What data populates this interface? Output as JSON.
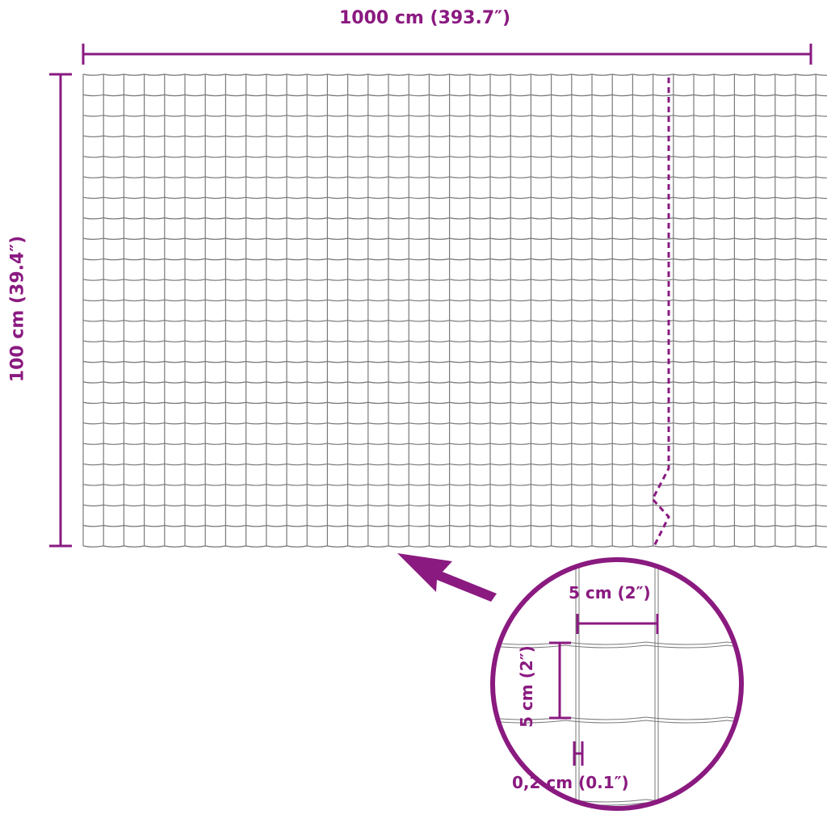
{
  "dimensions": {
    "width_label": "1000 cm (393.7″)",
    "height_label": "100 cm (39.4″)",
    "mesh_width_label": "5 cm (2″)",
    "mesh_height_label": "5 cm (2″)",
    "wire_label": "0,2 cm (0.1″)"
  },
  "colors": {
    "accent": "#8a1a80",
    "wire": "#7a7a7a"
  }
}
